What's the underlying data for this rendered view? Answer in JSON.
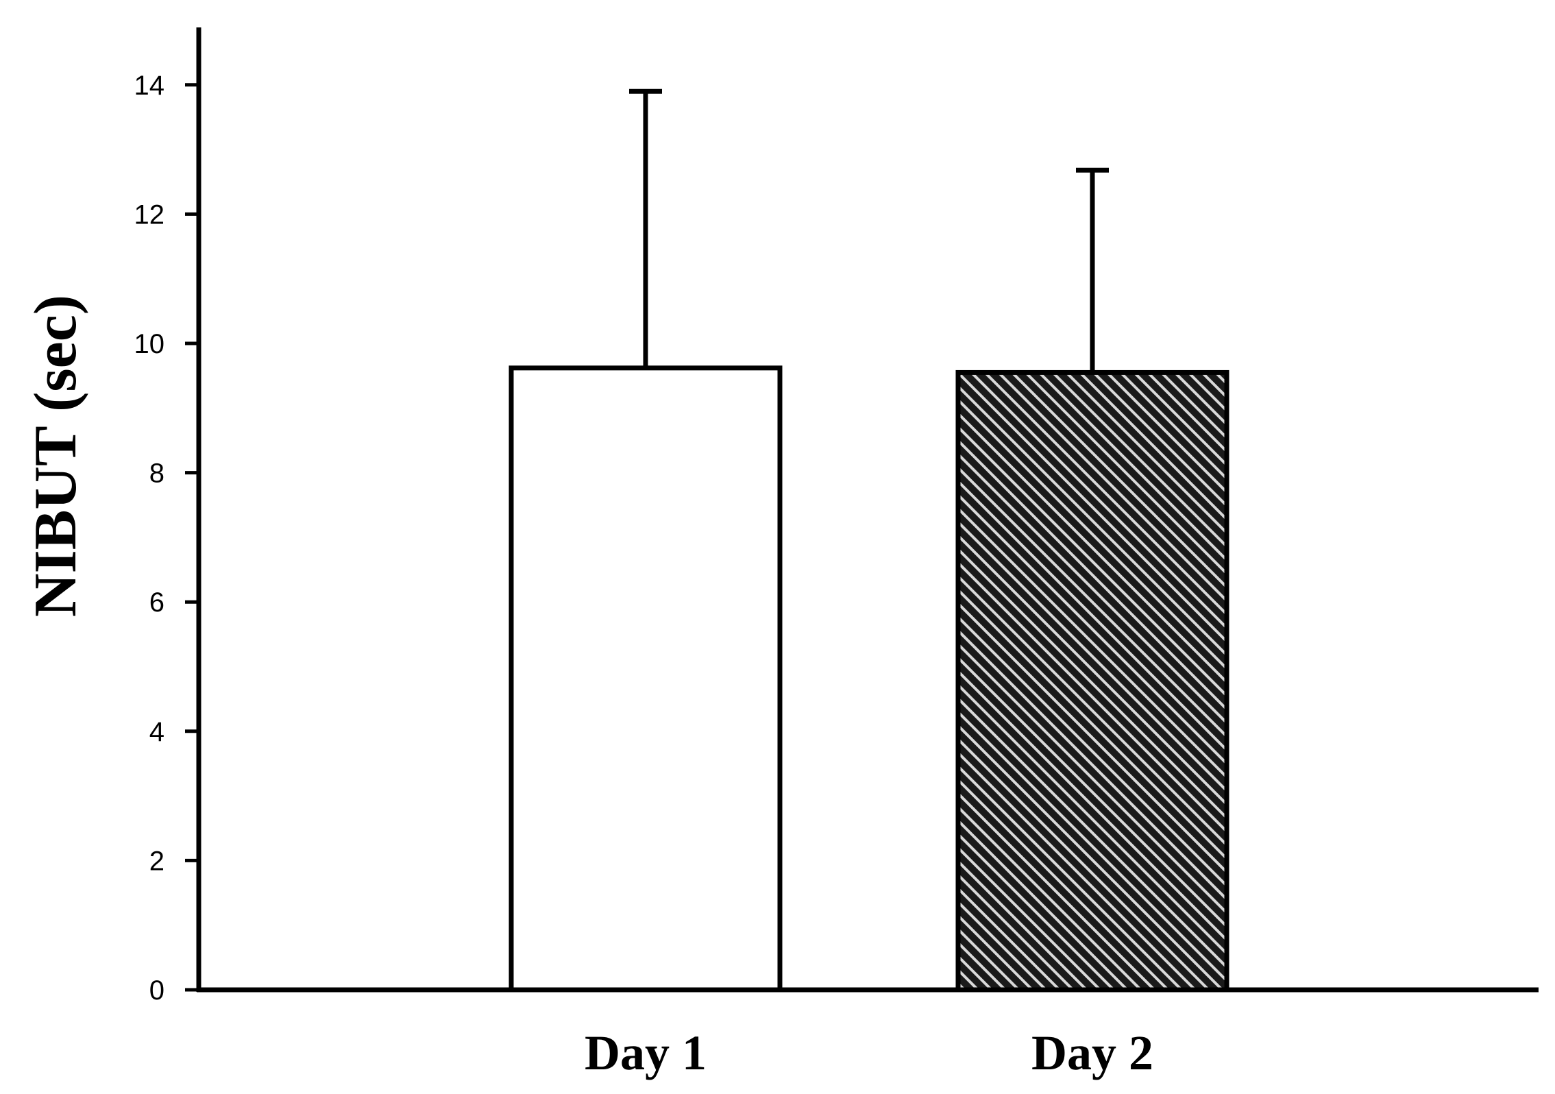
{
  "chart_data": {
    "type": "bar",
    "title": "",
    "xlabel": "",
    "ylabel": "NIBUT (sec)",
    "categories": [
      "Day 1",
      "Day 2"
    ],
    "series": [
      {
        "values": [
          9.62,
          9.55
        ],
        "error_upper": [
          13.9,
          12.68
        ],
        "fills": [
          "white",
          "diagonal-hatch"
        ]
      }
    ],
    "ylim": [
      0,
      15
    ],
    "yticks": [
      0,
      2,
      4,
      6,
      8,
      10,
      12,
      14
    ],
    "grid": false,
    "legend": "none",
    "colors": {
      "axis": "#000000",
      "bar_outline": "#000000",
      "bar_fill_1": "#ffffff",
      "hatch_dark": "#1a1a1a",
      "hatch_light": "#d9d9d9"
    }
  }
}
